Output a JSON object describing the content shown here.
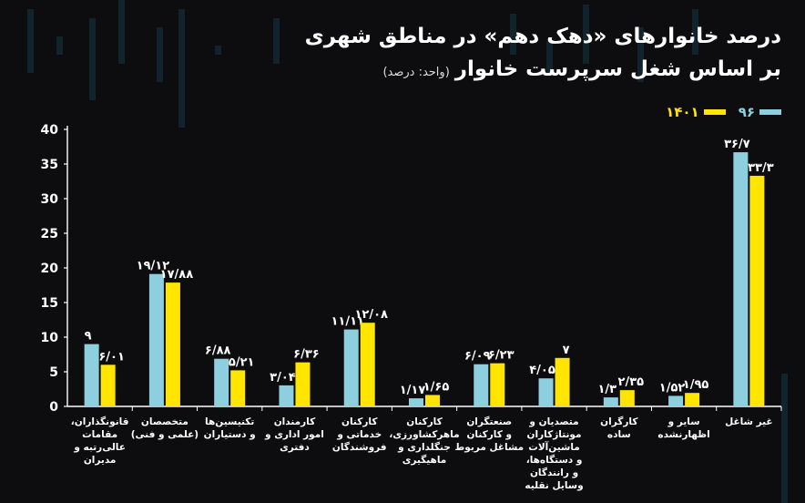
{
  "chart_data": {
    "type": "bar",
    "title_line1": "درصد خانوارهای «دهک دهم» در مناطق شهری",
    "title_line2": "بر اساس شغل سرپرست خانوار",
    "unit_note": "(واحد: درصد)",
    "ylim": [
      0,
      40
    ],
    "yticks": [
      {
        "value": 0,
        "label": "0"
      },
      {
        "value": 5,
        "label": "5"
      },
      {
        "value": 10,
        "label": "10"
      },
      {
        "value": 15,
        "label": "15"
      },
      {
        "value": 20,
        "label": "20"
      },
      {
        "value": 25,
        "label": "25"
      },
      {
        "value": 30,
        "label": "30"
      },
      {
        "value": 35,
        "label": "35"
      },
      {
        "value": 40,
        "label": "40"
      }
    ],
    "grid": false,
    "legend_position": "top-right",
    "series": [
      {
        "name": "۹۶",
        "color": "#8ecfdf"
      },
      {
        "name": "۱۴۰۱",
        "color": "#ffe500"
      }
    ],
    "categories": [
      {
        "lines": [
          "قانونگذاران،",
          "مقامات",
          "عالی‌رتبه و",
          "مدیران"
        ],
        "values": [
          9,
          6.01
        ],
        "labels": [
          "۹",
          "۶/۰۱"
        ]
      },
      {
        "lines": [
          "متخصصان",
          "(علمی و فنی)"
        ],
        "values": [
          19.12,
          17.88
        ],
        "labels": [
          "۱۹/۱۲",
          "۱۷/۸۸"
        ]
      },
      {
        "lines": [
          "تکنیسین‌ها",
          "و دستیاران"
        ],
        "values": [
          6.88,
          5.21
        ],
        "labels": [
          "۶/۸۸",
          "۵/۲۱"
        ]
      },
      {
        "lines": [
          "کارمندان",
          "امور اداری و",
          "دفتری"
        ],
        "values": [
          3.04,
          6.36
        ],
        "labels": [
          "۳/۰۴",
          "۶/۳۶"
        ]
      },
      {
        "lines": [
          "کارکنان",
          "خدماتی و",
          "فروشندگان"
        ],
        "values": [
          11.11,
          12.08
        ],
        "labels": [
          "۱۱/۱۱",
          "۱۲/۰۸"
        ]
      },
      {
        "lines": [
          "کارکنان",
          "ماهرکشاورزی،",
          "جنگلداری و",
          "ماهیگیری"
        ],
        "values": [
          1.17,
          1.65
        ],
        "labels": [
          "۱/۱۷",
          "۱/۶۵"
        ]
      },
      {
        "lines": [
          "صنعتگران",
          "و کارکنان",
          "مشاغل مربوط"
        ],
        "values": [
          6.09,
          6.23
        ],
        "labels": [
          "۶/۰۹",
          "۶/۲۳"
        ]
      },
      {
        "lines": [
          "متصدیان و",
          "مونتاژکاران",
          "ماشین‌آلات",
          "و دستگاه‌ها،",
          "و رانندگان",
          "وسایل نقلیه"
        ],
        "values": [
          4.05,
          7
        ],
        "labels": [
          "۴/۰۵",
          "۷"
        ]
      },
      {
        "lines": [
          "کارگران",
          "ساده"
        ],
        "values": [
          1.3,
          2.35
        ],
        "labels": [
          "۱/۳",
          "۲/۳۵"
        ]
      },
      {
        "lines": [
          "سایر و",
          "اظهارنشده"
        ],
        "values": [
          1.52,
          1.95
        ],
        "labels": [
          "۱/۵۲",
          "۱/۹۵"
        ]
      },
      {
        "lines": [
          "غیر شاغل"
        ],
        "values": [
          36.7,
          33.3
        ],
        "labels": [
          "۳۶/۷",
          "۳۳/۳"
        ]
      }
    ]
  }
}
